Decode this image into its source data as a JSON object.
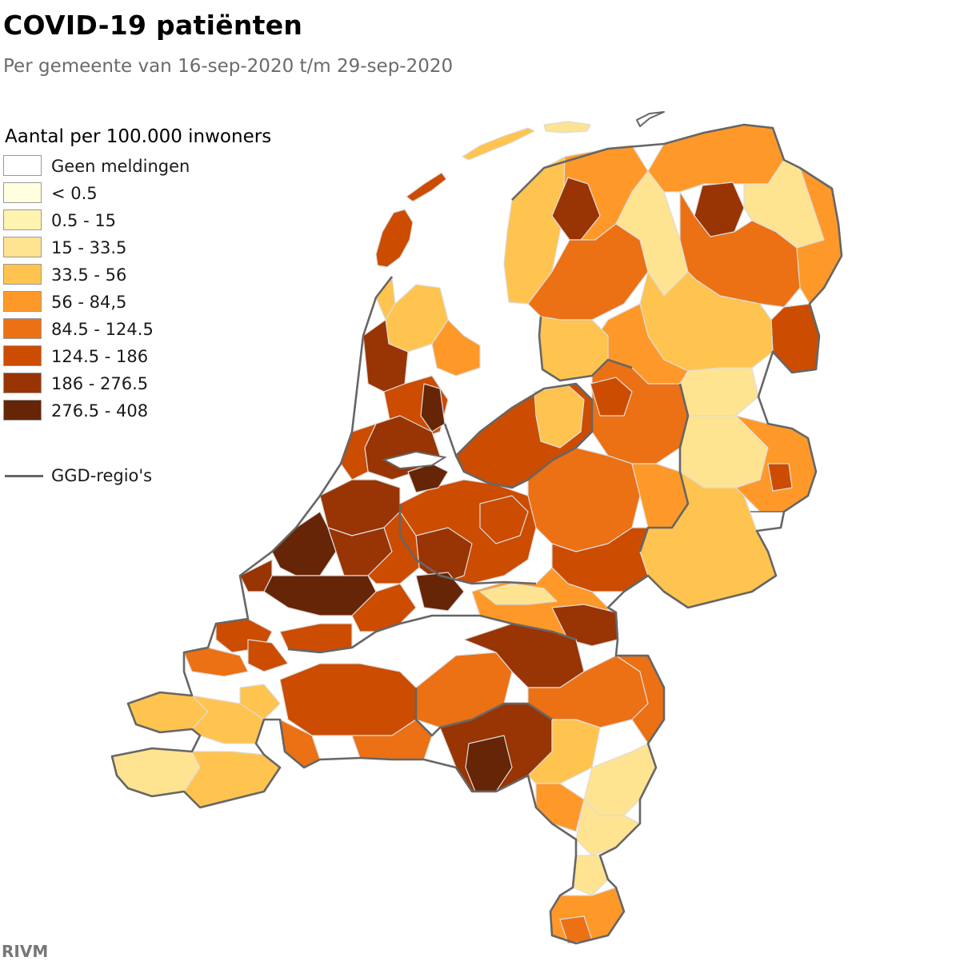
{
  "header": {
    "title": "COVID-19 patiënten",
    "subtitle": "Per gemeente van 16-sep-2020 t/m 29-sep-2020"
  },
  "legend": {
    "title": "Aantal per 100.000 inwoners",
    "classes": [
      {
        "label": "Geen meldingen",
        "color": "#ffffff"
      },
      {
        "label": "< 0.5",
        "color": "#ffffe0"
      },
      {
        "label": "0.5 - 15",
        "color": "#fff3b0"
      },
      {
        "label": "15 - 33.5",
        "color": "#fee391"
      },
      {
        "label": "33.5 - 56",
        "color": "#fec44f"
      },
      {
        "label": "56 - 84,5",
        "color": "#fe9929"
      },
      {
        "label": "84.5 - 124.5",
        "color": "#ec7014"
      },
      {
        "label": "124.5 - 186",
        "color": "#cc4c02"
      },
      {
        "label": "186 - 276.5",
        "color": "#993404"
      },
      {
        "label": "276.5 - 408",
        "color": "#662506"
      }
    ],
    "boundary_label": "GGD-regio's",
    "boundary_color": "#666666"
  },
  "source": "RIVM"
}
